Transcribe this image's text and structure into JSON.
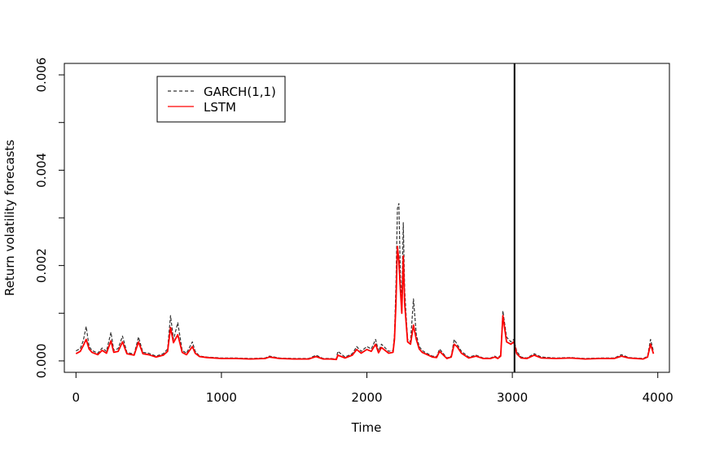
{
  "chart_data": {
    "type": "line",
    "xlabel": "Time",
    "ylabel": "Return volatility forecasts",
    "xlim": [
      -80,
      4080
    ],
    "ylim": [
      -0.00024,
      0.00624
    ],
    "x_ticks": [
      0,
      1000,
      2000,
      3000,
      4000
    ],
    "x_tick_labels": [
      "0",
      "1000",
      "2000",
      "3000",
      "4000"
    ],
    "y_ticks": [
      0.0,
      0.001,
      0.002,
      0.003,
      0.004,
      0.005,
      0.006
    ],
    "y_tick_labels": [
      "0.000",
      "",
      "0.002",
      "",
      "0.004",
      "",
      "0.006"
    ],
    "vline_x": 3015,
    "grid": false,
    "legend": {
      "position": "top-left",
      "entries": [
        {
          "label": "GARCH(1,1)",
          "color": "#333333",
          "style": "dashed"
        },
        {
          "label": "LSTM",
          "color": "#ff0000",
          "style": "solid"
        }
      ]
    },
    "series": [
      {
        "name": "GARCH(1,1)",
        "color": "#333333",
        "style": "dashed",
        "x": [
          0,
          30,
          50,
          70,
          90,
          110,
          150,
          180,
          210,
          240,
          260,
          290,
          320,
          350,
          400,
          430,
          460,
          500,
          550,
          600,
          630,
          650,
          670,
          700,
          730,
          760,
          800,
          820,
          850,
          900,
          1000,
          1100,
          1200,
          1300,
          1330,
          1400,
          1500,
          1600,
          1650,
          1700,
          1750,
          1790,
          1800,
          1850,
          1900,
          1930,
          1960,
          2000,
          2030,
          2060,
          2080,
          2100,
          2150,
          2180,
          2190,
          2200,
          2210,
          2220,
          2230,
          2240,
          2250,
          2260,
          2270,
          2280,
          2300,
          2320,
          2340,
          2360,
          2380,
          2400,
          2450,
          2480,
          2500,
          2550,
          2580,
          2600,
          2620,
          2650,
          2700,
          2750,
          2800,
          2850,
          2880,
          2900,
          2920,
          2935,
          2960,
          2990,
          3010,
          3030,
          3060,
          3100,
          3150,
          3200,
          3300,
          3400,
          3500,
          3600,
          3700,
          3750,
          3800,
          3900,
          3930,
          3950,
          3970
        ],
        "values": [
          0.00021,
          0.00026,
          0.00042,
          0.00072,
          0.0003,
          0.00022,
          0.00016,
          0.00027,
          0.0002,
          0.0006,
          0.00022,
          0.00026,
          0.00052,
          0.00018,
          0.00014,
          0.0005,
          0.00018,
          0.00016,
          0.0001,
          0.00015,
          0.00025,
          0.00095,
          0.00045,
          0.0008,
          0.00022,
          0.00016,
          0.0004,
          0.0002,
          0.0001,
          8e-05,
          6e-05,
          6e-05,
          5e-05,
          6e-05,
          0.0001,
          6e-05,
          5e-05,
          5e-05,
          0.00012,
          5e-05,
          5e-05,
          4e-05,
          0.0002,
          8e-05,
          0.00015,
          0.0003,
          0.0002,
          0.0003,
          0.00025,
          0.00045,
          0.0002,
          0.00035,
          0.0002,
          0.00022,
          0.00055,
          0.0016,
          0.0032,
          0.0033,
          0.0018,
          0.0012,
          0.0029,
          0.0015,
          0.00095,
          0.00045,
          0.0004,
          0.0013,
          0.00055,
          0.0003,
          0.00022,
          0.00018,
          0.0001,
          9e-05,
          0.00025,
          6e-05,
          0.0001,
          0.00045,
          0.00035,
          0.0002,
          8e-05,
          0.00012,
          6e-05,
          6e-05,
          0.0001,
          6e-05,
          0.00012,
          0.00105,
          0.0005,
          0.0004,
          0.00045,
          0.0002,
          8e-05,
          6e-05,
          0.00015,
          8e-05,
          6e-05,
          7e-05,
          5e-05,
          6e-05,
          6e-05,
          0.00013,
          7e-05,
          5e-05,
          0.0001,
          0.00045,
          0.0002
        ]
      },
      {
        "name": "LSTM",
        "color": "#ff0000",
        "style": "solid",
        "x": [
          0,
          30,
          50,
          70,
          90,
          110,
          150,
          180,
          210,
          240,
          260,
          290,
          320,
          350,
          400,
          430,
          460,
          500,
          550,
          600,
          630,
          650,
          670,
          700,
          730,
          760,
          800,
          820,
          850,
          900,
          1000,
          1100,
          1200,
          1300,
          1330,
          1400,
          1500,
          1600,
          1650,
          1700,
          1750,
          1790,
          1800,
          1850,
          1900,
          1930,
          1960,
          2000,
          2030,
          2060,
          2080,
          2100,
          2150,
          2180,
          2190,
          2200,
          2210,
          2220,
          2230,
          2240,
          2250,
          2260,
          2270,
          2280,
          2300,
          2320,
          2340,
          2360,
          2380,
          2400,
          2450,
          2480,
          2500,
          2550,
          2580,
          2600,
          2620,
          2650,
          2700,
          2750,
          2800,
          2850,
          2880,
          2900,
          2920,
          2935,
          2960,
          2990,
          3010,
          3030,
          3060,
          3100,
          3150,
          3200,
          3300,
          3400,
          3500,
          3600,
          3700,
          3750,
          3800,
          3900,
          3930,
          3950,
          3970
        ],
        "values": [
          0.00015,
          0.0002,
          0.00032,
          0.00045,
          0.00025,
          0.00018,
          0.00013,
          0.00022,
          0.00016,
          0.00042,
          0.00018,
          0.0002,
          0.0004,
          0.00015,
          0.00012,
          0.0004,
          0.00015,
          0.00013,
          8e-05,
          0.00012,
          0.0002,
          0.0007,
          0.00038,
          0.00055,
          0.00018,
          0.00013,
          0.0003,
          0.00016,
          9e-05,
          7e-05,
          5e-05,
          5e-05,
          4e-05,
          5e-05,
          8e-05,
          5e-05,
          4e-05,
          4e-05,
          9e-05,
          4e-05,
          4e-05,
          3e-05,
          0.00012,
          6e-05,
          0.00012,
          0.00024,
          0.00016,
          0.00024,
          0.0002,
          0.00035,
          0.00017,
          0.00028,
          0.00016,
          0.00018,
          0.00045,
          0.0012,
          0.0024,
          0.0021,
          0.0015,
          0.001,
          0.0022,
          0.0012,
          0.0008,
          0.0004,
          0.00035,
          0.00075,
          0.00045,
          0.00025,
          0.00018,
          0.00015,
          8e-05,
          7e-05,
          0.0002,
          5e-05,
          8e-05,
          0.00035,
          0.0003,
          0.00016,
          6e-05,
          0.0001,
          5e-05,
          5e-05,
          8e-05,
          5e-05,
          0.0001,
          0.00095,
          0.0004,
          0.00035,
          0.0004,
          0.00015,
          6e-05,
          5e-05,
          0.00012,
          6e-05,
          5e-05,
          6e-05,
          4e-05,
          5e-05,
          5e-05,
          0.0001,
          6e-05,
          4e-05,
          8e-05,
          0.00035,
          0.00015
        ]
      }
    ]
  }
}
